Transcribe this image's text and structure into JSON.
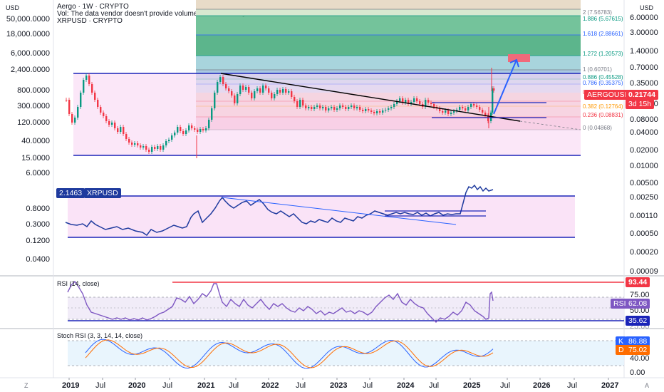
{
  "header": {
    "title_line": "Aergo · 1W · CRYPTO",
    "vol_line": "Vol: The data vendor doesn't provide volume data for this symbol.",
    "compare_line": "XRPUSD · CRYPTO"
  },
  "left_axis": {
    "currency": "USD",
    "labels": [
      "50,000.0000",
      "18,000.0000",
      "6,000.0000",
      "2,400.0000",
      "800.0000",
      "300.0000",
      "120.0000",
      "40.0000",
      "15.0000",
      "6.0000",
      "0.8000",
      "0.3000",
      "0.1200",
      "0.0400"
    ],
    "xrp_value": "2.1463",
    "xrp_symbol": "XRPUSD"
  },
  "right_axis": {
    "currency": "USD",
    "labels": [
      "6.00000",
      "3.00000",
      "1.40000",
      "0.70000",
      "0.35000",
      "0.16000",
      "0.08000",
      "0.04000",
      "0.02000",
      "0.01000",
      "0.00500",
      "0.00250",
      "0.00110",
      "0.00050",
      "0.00020",
      "0.00009"
    ],
    "price_tag": {
      "symbol": "AERGOUSD",
      "price": "0.21744",
      "countdown": "3d 15h"
    }
  },
  "fib_levels": [
    {
      "label": "2 (7.56783)",
      "color": "#787b86"
    },
    {
      "label": "1.886 (5.67615)",
      "color": "#089981"
    },
    {
      "label": "1.618 (2.88661)",
      "color": "#2962ff"
    },
    {
      "label": "1.272 (1.20573)",
      "color": "#089981"
    },
    {
      "label": "1 (0.60701)",
      "color": "#787b86"
    },
    {
      "label": "0.886 (0.45528)",
      "color": "#089981"
    },
    {
      "label": "0.786 (0.35375)",
      "color": "#2962ff"
    },
    {
      "label": "0.5 (0.1717)",
      "color": "#f23645"
    },
    {
      "label": "0.382 (0.12764)",
      "color": "#ff9800"
    },
    {
      "label": "0.236 (0.08831)",
      "color": "#f23645"
    },
    {
      "label": "0 (0.04868)",
      "color": "#787b86"
    }
  ],
  "rsi": {
    "title": "RSI (14, close)",
    "labels": [
      "75.00",
      "50.00",
      "25.00"
    ],
    "value_tag": "62.08",
    "series_tag": "RSI",
    "high_tag": "93.44",
    "low_tag": "35.62"
  },
  "stoch": {
    "title": "Stoch RSI (3, 3, 14, 14, close)",
    "labels": [
      "40.00",
      "0.00"
    ],
    "k_label": "K",
    "k_value": "86.88",
    "d_label": "D",
    "d_value": "75.02"
  },
  "time_axis": [
    "2019",
    "Jul",
    "2020",
    "Jul",
    "2021",
    "Jul",
    "2022",
    "Jul",
    "2023",
    "Jul",
    "2024",
    "Jul",
    "2025",
    "Jul",
    "2026",
    "Jul",
    "2027"
  ],
  "corner_left": "Z",
  "corner_right": "A",
  "colors": {
    "up": "#089981",
    "down": "#f23645",
    "xrp": "#1e3a9e",
    "rsi": "#7e57c2",
    "stoch_k": "#2962ff",
    "stoch_d": "#ff6d00",
    "range_fill": "#f8d7f3",
    "trend_line": "#000000",
    "arrow": "#2962ff",
    "hline": "#1a24b8"
  }
}
